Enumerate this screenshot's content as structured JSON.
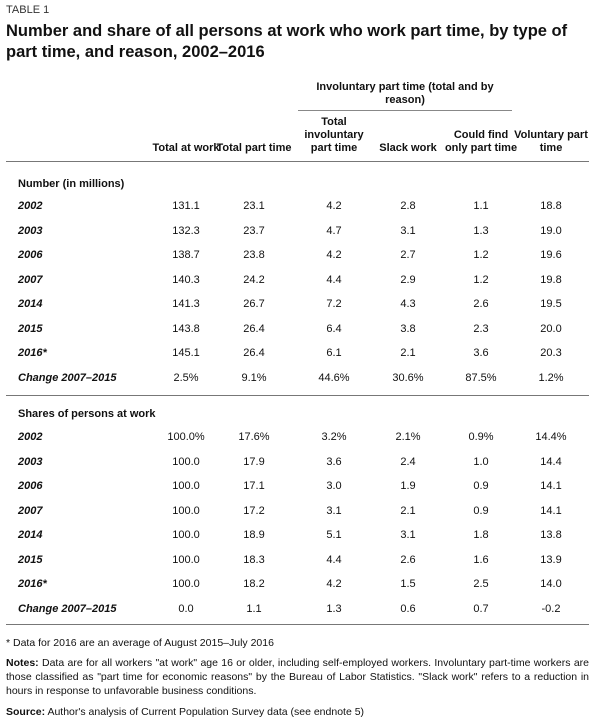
{
  "label": "TABLE 1",
  "title": "Number and share of all persons at work who work part time, by type of part time, and reason, 2002–2016",
  "group_header": "Involuntary part time (total and by reason)",
  "columns": [
    "Total at work",
    "Total part time",
    "Total involuntary part time",
    "Slack work",
    "Could find only part time",
    "Voluntary part time"
  ],
  "sections": [
    {
      "title": "Number (in millions)",
      "rows": [
        {
          "label": "2002",
          "cells": [
            "131.1",
            "23.1",
            "4.2",
            "2.8",
            "1.1",
            "18.8"
          ]
        },
        {
          "label": "2003",
          "cells": [
            "132.3",
            "23.7",
            "4.7",
            "3.1",
            "1.3",
            "19.0"
          ]
        },
        {
          "label": "2006",
          "cells": [
            "138.7",
            "23.8",
            "4.2",
            "2.7",
            "1.2",
            "19.6"
          ]
        },
        {
          "label": "2007",
          "cells": [
            "140.3",
            "24.2",
            "4.4",
            "2.9",
            "1.2",
            "19.8"
          ]
        },
        {
          "label": "2014",
          "cells": [
            "141.3",
            "26.7",
            "7.2",
            "4.3",
            "2.6",
            "19.5"
          ]
        },
        {
          "label": "2015",
          "cells": [
            "143.8",
            "26.4",
            "6.4",
            "3.8",
            "2.3",
            "20.0"
          ]
        },
        {
          "label": "2016*",
          "cells": [
            "145.1",
            "26.4",
            "6.1",
            "2.1",
            "3.6",
            "20.3"
          ]
        },
        {
          "label": "Change 2007–2015",
          "cells": [
            "2.5%",
            "9.1%",
            "44.6%",
            "30.6%",
            "87.5%",
            "1.2%"
          ]
        }
      ]
    },
    {
      "title": "Shares of persons at work",
      "rows": [
        {
          "label": "2002",
          "cells": [
            "100.0%",
            "17.6%",
            "3.2%",
            "2.1%",
            "0.9%",
            "14.4%"
          ]
        },
        {
          "label": "2003",
          "cells": [
            "100.0",
            "17.9",
            "3.6",
            "2.4",
            "1.0",
            "14.4"
          ]
        },
        {
          "label": "2006",
          "cells": [
            "100.0",
            "17.1",
            "3.0",
            "1.9",
            "0.9",
            "14.1"
          ]
        },
        {
          "label": "2007",
          "cells": [
            "100.0",
            "17.2",
            "3.1",
            "2.1",
            "0.9",
            "14.1"
          ]
        },
        {
          "label": "2014",
          "cells": [
            "100.0",
            "18.9",
            "5.1",
            "3.1",
            "1.8",
            "13.8"
          ]
        },
        {
          "label": "2015",
          "cells": [
            "100.0",
            "18.3",
            "4.4",
            "2.6",
            "1.6",
            "13.9"
          ]
        },
        {
          "label": "2016*",
          "cells": [
            "100.0",
            "18.2",
            "4.2",
            "1.5",
            "2.5",
            "14.0"
          ]
        },
        {
          "label": "Change 2007–2015",
          "cells": [
            "0.0",
            "1.1",
            "1.3",
            "0.6",
            "0.7",
            "-0.2"
          ]
        }
      ]
    }
  ],
  "footnote": "* Data for 2016 are an average of August 2015–July 2016",
  "notes_label": "Notes:",
  "notes": "Data are for all workers \"at work\" age 16 or older, including self-employed workers. Involuntary part-time workers are those classified as \"part time for economic reasons\" by the Bureau of Labor Statistics. \"Slack work\" refers to a reduction in hours in response to unfavorable business conditions.",
  "source_label": "Source:",
  "source": "Author's analysis of Current Population Survey data (see endnote 5)"
}
